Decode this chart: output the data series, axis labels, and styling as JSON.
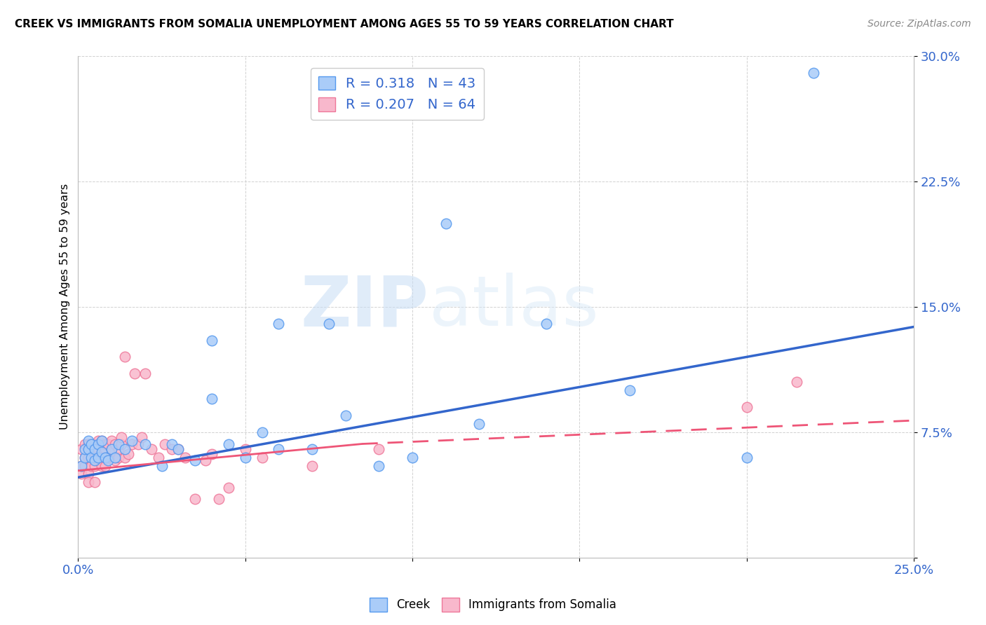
{
  "title": "CREEK VS IMMIGRANTS FROM SOMALIA UNEMPLOYMENT AMONG AGES 55 TO 59 YEARS CORRELATION CHART",
  "source": "Source: ZipAtlas.com",
  "ylabel": "Unemployment Among Ages 55 to 59 years",
  "xlim": [
    0.0,
    0.25
  ],
  "ylim": [
    0.0,
    0.3
  ],
  "xticks": [
    0.0,
    0.05,
    0.1,
    0.15,
    0.2,
    0.25
  ],
  "yticks": [
    0.0,
    0.075,
    0.15,
    0.225,
    0.3
  ],
  "ytick_labels": [
    "",
    "7.5%",
    "15.0%",
    "22.5%",
    "30.0%"
  ],
  "creek_R": 0.318,
  "creek_N": 43,
  "somalia_R": 0.207,
  "somalia_N": 64,
  "creek_color": "#aaccf8",
  "creek_edge_color": "#5599ee",
  "somalia_color": "#f8b8cc",
  "somalia_edge_color": "#ee7799",
  "creek_line_color": "#3366cc",
  "somalia_line_color": "#ee5577",
  "watermark_zip": "ZIP",
  "watermark_atlas": "atlas",
  "creek_x": [
    0.001,
    0.002,
    0.002,
    0.003,
    0.003,
    0.004,
    0.004,
    0.005,
    0.005,
    0.006,
    0.006,
    0.007,
    0.007,
    0.008,
    0.009,
    0.01,
    0.011,
    0.012,
    0.014,
    0.016,
    0.02,
    0.025,
    0.028,
    0.03,
    0.035,
    0.04,
    0.045,
    0.05,
    0.055,
    0.06,
    0.07,
    0.08,
    0.1,
    0.12,
    0.14,
    0.165,
    0.2,
    0.04,
    0.06,
    0.075,
    0.09,
    0.11,
    0.22
  ],
  "creek_y": [
    0.055,
    0.06,
    0.065,
    0.065,
    0.07,
    0.06,
    0.068,
    0.058,
    0.065,
    0.06,
    0.068,
    0.063,
    0.07,
    0.06,
    0.058,
    0.065,
    0.06,
    0.068,
    0.065,
    0.07,
    0.068,
    0.055,
    0.068,
    0.065,
    0.058,
    0.095,
    0.068,
    0.06,
    0.075,
    0.065,
    0.065,
    0.085,
    0.06,
    0.08,
    0.14,
    0.1,
    0.06,
    0.13,
    0.14,
    0.14,
    0.055,
    0.2,
    0.29
  ],
  "somalia_x": [
    0.001,
    0.001,
    0.001,
    0.002,
    0.002,
    0.002,
    0.003,
    0.003,
    0.003,
    0.003,
    0.004,
    0.004,
    0.004,
    0.004,
    0.005,
    0.005,
    0.005,
    0.005,
    0.005,
    0.006,
    0.006,
    0.006,
    0.007,
    0.007,
    0.007,
    0.008,
    0.008,
    0.008,
    0.008,
    0.009,
    0.009,
    0.01,
    0.01,
    0.011,
    0.011,
    0.012,
    0.012,
    0.013,
    0.013,
    0.014,
    0.014,
    0.015,
    0.016,
    0.017,
    0.018,
    0.019,
    0.02,
    0.022,
    0.024,
    0.026,
    0.028,
    0.03,
    0.032,
    0.035,
    0.038,
    0.04,
    0.042,
    0.045,
    0.05,
    0.055,
    0.07,
    0.09,
    0.2,
    0.215
  ],
  "somalia_y": [
    0.05,
    0.055,
    0.065,
    0.055,
    0.06,
    0.068,
    0.06,
    0.068,
    0.05,
    0.045,
    0.058,
    0.065,
    0.068,
    0.055,
    0.055,
    0.06,
    0.065,
    0.068,
    0.045,
    0.058,
    0.065,
    0.07,
    0.06,
    0.055,
    0.07,
    0.055,
    0.065,
    0.068,
    0.06,
    0.06,
    0.068,
    0.065,
    0.07,
    0.058,
    0.068,
    0.06,
    0.065,
    0.068,
    0.072,
    0.06,
    0.12,
    0.062,
    0.068,
    0.11,
    0.068,
    0.072,
    0.11,
    0.065,
    0.06,
    0.068,
    0.065,
    0.065,
    0.06,
    0.035,
    0.058,
    0.062,
    0.035,
    0.042,
    0.065,
    0.06,
    0.055,
    0.065,
    0.09,
    0.105
  ],
  "creek_trend": [
    0.048,
    0.138
  ],
  "somalia_trend": [
    0.052,
    0.082
  ],
  "somalia_trend_dashed_start": 0.085,
  "somalia_trend_dashed_end": 0.082
}
